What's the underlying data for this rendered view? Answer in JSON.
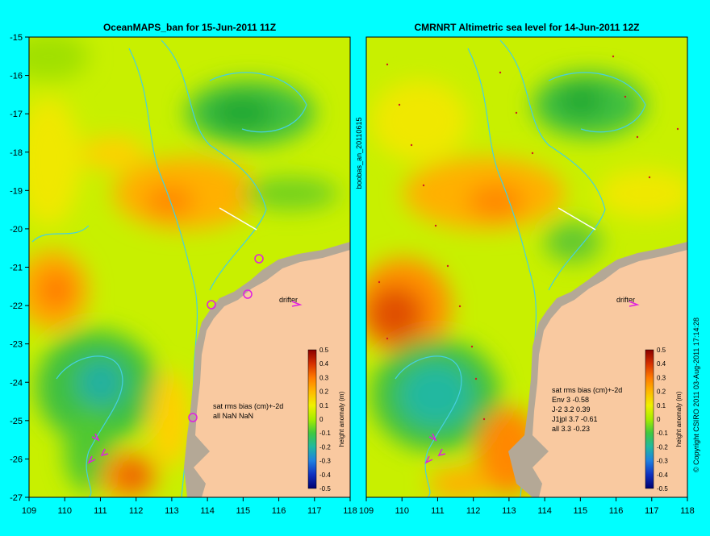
{
  "panels": [
    {
      "title": "OceanMAPS_ban for 15-Jun-2011 11Z",
      "stats_heading": "sat rms bias (cm)+-2d",
      "stats_lines": [
        "all NaN NaN"
      ]
    },
    {
      "title": "CMRNRT Altimetric sea level  for 14-Jun-2011 12Z",
      "stats_heading": "sat rms bias (cm)+-2d",
      "stats_lines": [
        "Env   3 -0.58",
        "J-2   3.2 0.39",
        "J1jpl 3.7 -0.61",
        "all 3.3 -0.23"
      ]
    }
  ],
  "axes": {
    "lat_ticks": [
      "-15",
      "-16",
      "-17",
      "-18",
      "-19",
      "-20",
      "-21",
      "-22",
      "-23",
      "-24",
      "-25",
      "-26",
      "-27"
    ],
    "lon_ticks": [
      "109",
      "110",
      "111",
      "112",
      "113",
      "114",
      "115",
      "116",
      "117",
      "118"
    ]
  },
  "colorbar": {
    "label": "height anomaly (m)",
    "ticks": [
      "0.5",
      "0.4",
      "0.3",
      "0.2",
      "0.1",
      "0",
      "-0.1",
      "-0.2",
      "-0.3",
      "-0.4",
      "-0.5"
    ]
  },
  "labels": {
    "drifter": "drifter",
    "side_id": "boobas_an_20110615",
    "copyright": "© Copyright CSIRO 2011  03-Aug-2011 17:14:28"
  },
  "colors": {
    "background": "#00ffff",
    "land": "#f9c9a0",
    "shelf": "#b4a896",
    "bathymetry": "#45d0e0",
    "drifter_marker": "#e020e0",
    "base_field": "#c8f000"
  }
}
